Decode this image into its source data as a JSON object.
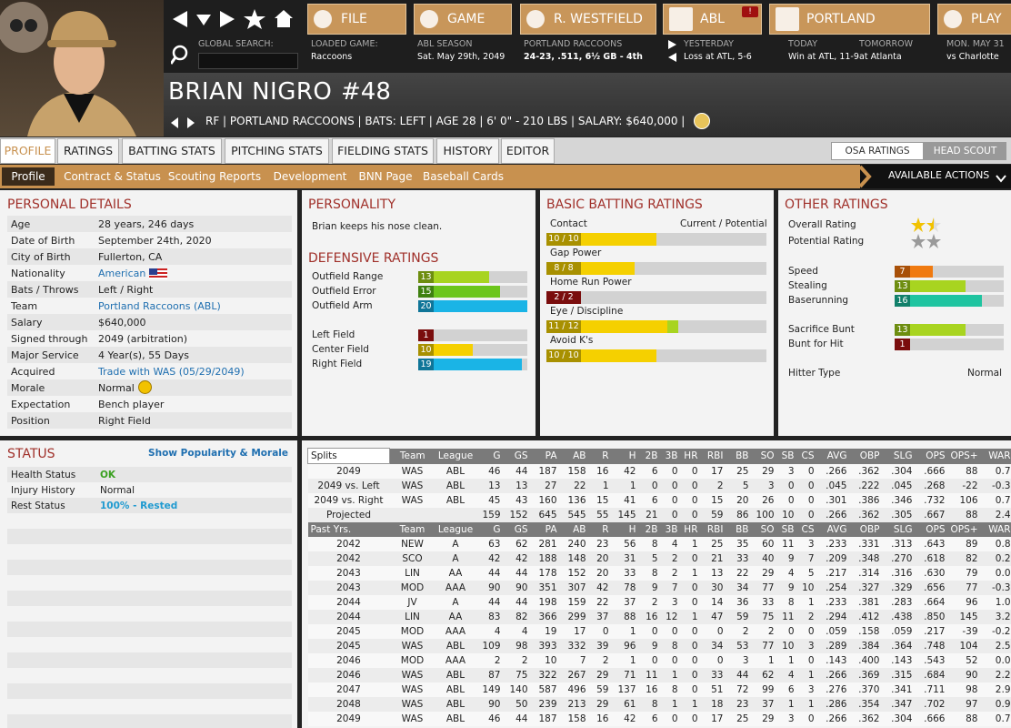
{
  "nav": {
    "buttons": [
      "FILE",
      "GAME",
      "R. WESTFIELD",
      "ABL",
      "PORTLAND",
      "PLAY"
    ],
    "alert": "!",
    "search_label": "GLOBAL SEARCH:",
    "info": [
      {
        "label": "LOADED GAME:",
        "value": "Raccoons"
      },
      {
        "label": "ABL SEASON",
        "value": "Sat. May 29th, 2049"
      },
      {
        "label": "PORTLAND RACCOONS",
        "value": "24-23, .511, 6½ GB - 4th"
      },
      {
        "label": "YESTERDAY",
        "value": "Loss at ATL, 5-6"
      },
      {
        "label": "TODAY",
        "value": "Win at ATL, 11-9"
      },
      {
        "label": "TOMORROW",
        "value": "at Atlanta"
      },
      {
        "label": "MON. MAY 31",
        "value": "vs Charlotte"
      }
    ]
  },
  "player": {
    "name": "BRIAN NIGRO",
    "number": "#48",
    "details": "RF | PORTLAND RACCOONS | BATS: LEFT | AGE 28 | 6' 0\" - 210 LBS | SALARY: $640,000 |"
  },
  "tabs": [
    "PROFILE",
    "RATINGS",
    "BATTING STATS",
    "PITCHING STATS",
    "FIELDING STATS",
    "HISTORY",
    "EDITOR"
  ],
  "view_toggle": [
    "OSA RATINGS",
    "HEAD SCOUT"
  ],
  "subtabs": [
    "Profile",
    "Contract & Status",
    "Scouting Reports",
    "Development",
    "BNN Page",
    "Baseball Cards"
  ],
  "actions": "AVAILABLE ACTIONS",
  "personal": {
    "title": "PERSONAL DETAILS",
    "rows": [
      [
        "Age",
        "28 years, 246 days"
      ],
      [
        "Date of Birth",
        "September 24th, 2020"
      ],
      [
        "City of Birth",
        "Fullerton, CA"
      ],
      [
        "Nationality",
        "American"
      ],
      [
        "Bats / Throws",
        "Left / Right"
      ],
      [
        "Team",
        "Portland Raccoons (ABL)"
      ],
      [
        "Salary",
        "$640,000"
      ],
      [
        "Signed through",
        "2049 (arbitration)"
      ],
      [
        "Major Service",
        "4 Year(s), 55 Days"
      ],
      [
        "Acquired",
        "Trade with WAS (05/29/2049)"
      ],
      [
        "Morale",
        "Normal"
      ],
      [
        "Expectation",
        "Bench player"
      ],
      [
        "Position",
        "Right Field"
      ]
    ]
  },
  "personality": {
    "title": "PERSONALITY",
    "text": "Brian keeps his nose clean."
  },
  "defense": {
    "title": "DEFENSIVE RATINGS",
    "bar_max": 20,
    "ratings": [
      {
        "label": "Outfield Range",
        "value": 13
      },
      {
        "label": "Outfield Error",
        "value": 15
      },
      {
        "label": "Outfield Arm",
        "value": 20
      }
    ],
    "positions": [
      {
        "label": "Left Field",
        "value": 1
      },
      {
        "label": "Center Field",
        "value": 10
      },
      {
        "label": "Right Field",
        "value": 19
      }
    ]
  },
  "batting": {
    "title": "BASIC BATTING RATINGS",
    "column": "Current / Potential",
    "bar_max": 20,
    "rows": [
      {
        "label": "Contact",
        "current": 10,
        "potential": 10,
        "value_label": "10 / 10"
      },
      {
        "label": "Gap Power",
        "current": 8,
        "potential": 8,
        "value_label": "8 / 8"
      },
      {
        "label": "Home Run Power",
        "current": 2,
        "potential": 2,
        "value_label": "2 / 2"
      },
      {
        "label": "Eye / Discipline",
        "current": 11,
        "potential": 12,
        "value_label": "11 / 12"
      },
      {
        "label": "Avoid K's",
        "current": 10,
        "potential": 10,
        "value_label": "10 / 10"
      }
    ]
  },
  "other": {
    "title": "OTHER RATINGS",
    "bar_max": 20,
    "stars": [
      {
        "label": "Overall Rating",
        "value": 1.5,
        "color": "#f2c200"
      },
      {
        "label": "Potential Rating",
        "value": 2,
        "color": "#9a9a9a"
      }
    ],
    "running": [
      {
        "label": "Speed",
        "value": 7
      },
      {
        "label": "Stealing",
        "value": 13
      },
      {
        "label": "Baserunning",
        "value": 16
      }
    ],
    "bunting": [
      {
        "label": "Sacrifice Bunt",
        "value": 13
      },
      {
        "label": "Bunt for Hit",
        "value": 1
      }
    ],
    "hitter_type": {
      "label": "Hitter Type",
      "value": "Normal"
    }
  },
  "status": {
    "title": "STATUS",
    "link": "Show Popularity & Morale",
    "rows": [
      [
        "Health Status",
        "OK"
      ],
      [
        "Injury History",
        "Normal"
      ],
      [
        "Rest Status",
        "100% - Rested"
      ]
    ]
  },
  "stats": {
    "splits_label": "Splits",
    "past_label": "Past Yrs.",
    "columns": [
      "Team",
      "League",
      "G",
      "GS",
      "PA",
      "AB",
      "R",
      "H",
      "2B",
      "3B",
      "HR",
      "RBI",
      "BB",
      "SO",
      "SB",
      "CS",
      "AVG",
      "OBP",
      "SLG",
      "OPS",
      "OPS+",
      "WAR"
    ],
    "rows": [
      [
        "2049",
        "WAS",
        "ABL",
        "46",
        "44",
        "187",
        "158",
        "16",
        "42",
        "6",
        "0",
        "0",
        "17",
        "25",
        "29",
        "3",
        "0",
        ".266",
        ".362",
        ".304",
        ".666",
        "88",
        "0.7"
      ],
      [
        "2049 vs. Left",
        "WAS",
        "ABL",
        "13",
        "13",
        "27",
        "22",
        "1",
        "1",
        "0",
        "0",
        "0",
        "2",
        "5",
        "3",
        "0",
        "0",
        ".045",
        ".222",
        ".045",
        ".268",
        "-22",
        "-0.3"
      ],
      [
        "2049 vs. Right",
        "WAS",
        "ABL",
        "45",
        "43",
        "160",
        "136",
        "15",
        "41",
        "6",
        "0",
        "0",
        "15",
        "20",
        "26",
        "0",
        "0",
        ".301",
        ".386",
        ".346",
        ".732",
        "106",
        "0.7"
      ],
      [
        "Projected",
        null,
        null,
        "159",
        "152",
        "645",
        "545",
        "55",
        "145",
        "21",
        "0",
        "0",
        "59",
        "86",
        "100",
        "10",
        "0",
        ".266",
        ".362",
        ".305",
        ".667",
        "88",
        "2.4"
      ]
    ],
    "past_rows": [
      [
        "2042",
        "NEW",
        "A",
        "63",
        "62",
        "281",
        "240",
        "23",
        "56",
        "8",
        "4",
        "1",
        "25",
        "35",
        "60",
        "11",
        "3",
        ".233",
        ".331",
        ".313",
        ".643",
        "89",
        "0.8"
      ],
      [
        "2042",
        "SCO",
        "A",
        "42",
        "42",
        "188",
        "148",
        "20",
        "31",
        "5",
        "2",
        "0",
        "21",
        "33",
        "40",
        "9",
        "7",
        ".209",
        ".348",
        ".270",
        ".618",
        "82",
        "0.2"
      ],
      [
        "2043",
        "LIN",
        "AA",
        "44",
        "44",
        "178",
        "152",
        "20",
        "33",
        "8",
        "2",
        "1",
        "13",
        "22",
        "29",
        "4",
        "5",
        ".217",
        ".314",
        ".316",
        ".630",
        "79",
        "0.0"
      ],
      [
        "2043",
        "MOD",
        "AAA",
        "90",
        "90",
        "351",
        "307",
        "42",
        "78",
        "9",
        "7",
        "0",
        "30",
        "34",
        "77",
        "9",
        "10",
        ".254",
        ".327",
        ".329",
        ".656",
        "77",
        "-0.3"
      ],
      [
        "2044",
        "JV",
        "A",
        "44",
        "44",
        "198",
        "159",
        "22",
        "37",
        "2",
        "3",
        "0",
        "14",
        "36",
        "33",
        "8",
        "1",
        ".233",
        ".381",
        ".283",
        ".664",
        "96",
        "1.0"
      ],
      [
        "2044",
        "LIN",
        "AA",
        "83",
        "82",
        "366",
        "299",
        "37",
        "88",
        "16",
        "12",
        "1",
        "47",
        "59",
        "75",
        "11",
        "2",
        ".294",
        ".412",
        ".438",
        ".850",
        "145",
        "3.2"
      ],
      [
        "2045",
        "MOD",
        "AAA",
        "4",
        "4",
        "19",
        "17",
        "0",
        "1",
        "0",
        "0",
        "0",
        "0",
        "2",
        "2",
        "0",
        "0",
        ".059",
        ".158",
        ".059",
        ".217",
        "-39",
        "-0.2"
      ],
      [
        "2045",
        "WAS",
        "ABL",
        "109",
        "98",
        "393",
        "332",
        "39",
        "96",
        "9",
        "8",
        "0",
        "34",
        "53",
        "77",
        "10",
        "3",
        ".289",
        ".384",
        ".364",
        ".748",
        "104",
        "2.5"
      ],
      [
        "2046",
        "MOD",
        "AAA",
        "2",
        "2",
        "10",
        "7",
        "2",
        "1",
        "0",
        "0",
        "0",
        "0",
        "3",
        "1",
        "1",
        "0",
        ".143",
        ".400",
        ".143",
        ".543",
        "52",
        "0.0"
      ],
      [
        "2046",
        "WAS",
        "ABL",
        "87",
        "75",
        "322",
        "267",
        "29",
        "71",
        "11",
        "1",
        "0",
        "33",
        "44",
        "62",
        "4",
        "1",
        ".266",
        ".369",
        ".315",
        ".684",
        "90",
        "2.2"
      ],
      [
        "2047",
        "WAS",
        "ABL",
        "149",
        "140",
        "587",
        "496",
        "59",
        "137",
        "16",
        "8",
        "0",
        "51",
        "72",
        "99",
        "6",
        "3",
        ".276",
        ".370",
        ".341",
        ".711",
        "98",
        "2.9"
      ],
      [
        "2048",
        "WAS",
        "ABL",
        "90",
        "50",
        "239",
        "213",
        "29",
        "61",
        "8",
        "1",
        "1",
        "18",
        "23",
        "37",
        "1",
        "1",
        ".286",
        ".354",
        ".347",
        ".702",
        "97",
        "0.9"
      ],
      [
        "2049",
        "WAS",
        "ABL",
        "46",
        "44",
        "187",
        "158",
        "16",
        "42",
        "6",
        "0",
        "0",
        "17",
        "25",
        "29",
        "3",
        "0",
        ".266",
        ".362",
        ".304",
        ".666",
        "88",
        "0.7"
      ]
    ]
  }
}
